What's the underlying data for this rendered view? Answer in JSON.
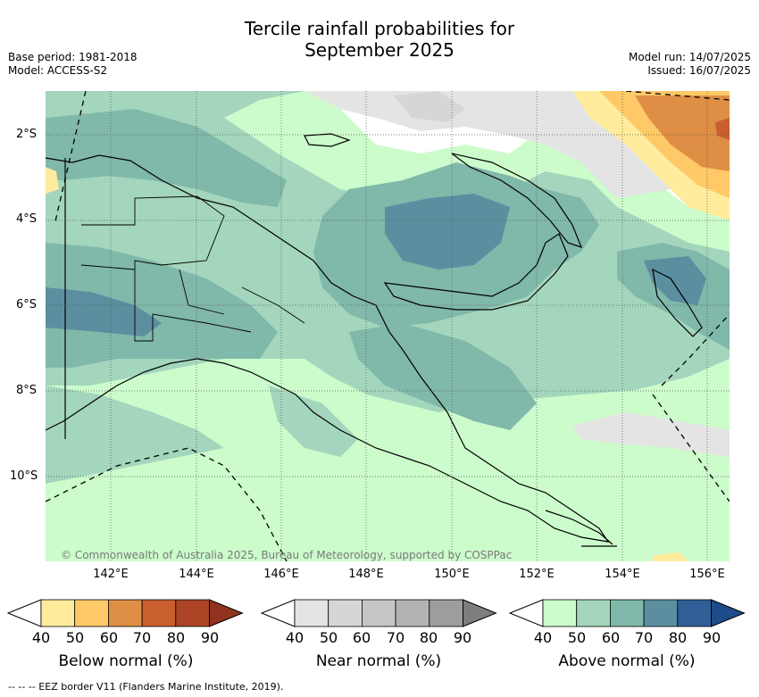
{
  "header": {
    "title_line1": "Tercile rainfall probabilities for",
    "title_line2": "September 2025",
    "base_period": "Base period: 1981-2018",
    "model": "Model: ACCESS-S2",
    "model_run": "Model run: 14/07/2025",
    "issued": "Issued: 16/07/2025"
  },
  "map": {
    "latitude_labels": [
      "2°S",
      "4°S",
      "6°S",
      "8°S",
      "10°S"
    ],
    "longitude_labels": [
      "142°E",
      "144°E",
      "146°E",
      "148°E",
      "150°E",
      "152°E",
      "154°E",
      "156°E"
    ],
    "copyright": "© Commonwealth of Australia 2025, Bureau of Meteorology, supported by COSPPac"
  },
  "legends": [
    {
      "title": "Below normal (%)",
      "ticks": [
        "40",
        "50",
        "60",
        "70",
        "80",
        "90"
      ],
      "colors": [
        "#ffffff",
        "#ffec9c",
        "#fec966",
        "#df8e45",
        "#c95f2e",
        "#ac4426",
        "#8f3320"
      ]
    },
    {
      "title": "Near normal (%)",
      "ticks": [
        "40",
        "50",
        "60",
        "70",
        "80",
        "90"
      ],
      "colors": [
        "#ffffff",
        "#e4e4e4",
        "#d6d6d6",
        "#c6c6c6",
        "#b3b3b3",
        "#9d9d9d",
        "#7e7e7e"
      ]
    },
    {
      "title": "Above normal (%)",
      "ticks": [
        "40",
        "50",
        "60",
        "70",
        "80",
        "90"
      ],
      "colors": [
        "#ffffff",
        "#ccfccc",
        "#a3d6bc",
        "#80b8aa",
        "#5b8fa0",
        "#2f5f96",
        "#1c4c8a"
      ]
    }
  ],
  "footer": "--  --  -- EEZ border V11 (Flanders Marine Institute, 2019)."
}
